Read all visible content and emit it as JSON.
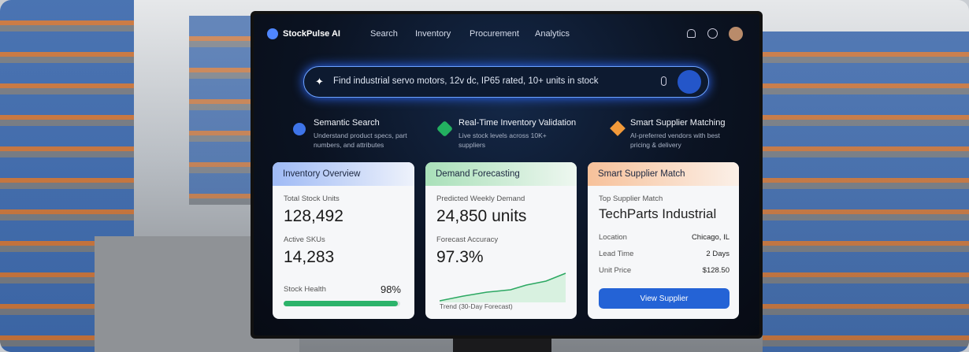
{
  "nav": {
    "brand": "StockPulse AI",
    "links": [
      "Search",
      "Inventory",
      "Procurement",
      "Analytics"
    ]
  },
  "search": {
    "query": "Find industrial servo motors, 12v dc, IP65 rated, 10+ units in stock"
  },
  "features": [
    {
      "title": "Semantic Search",
      "text": "Understand product specs, part numbers, and attributes"
    },
    {
      "title": "Real-Time Inventory Validation",
      "text": "Live stock levels across 10K+ suppliers"
    },
    {
      "title": "Smart Supplier Matching",
      "text": "AI-preferred vendors with best pricing & delivery"
    }
  ],
  "inventory": {
    "title": "Inventory Overview",
    "total_label": "Total Stock Units",
    "total": "128,492",
    "skus_label": "Active SKUs",
    "skus": "14,283",
    "health_label": "Stock Health",
    "health": {
      "value": 98,
      "label": "98%"
    }
  },
  "forecast": {
    "title": "Demand Forecasting",
    "demand_label": "Predicted Weekly Demand",
    "demand": "24,850 units",
    "accuracy_label": "Forecast Accuracy",
    "accuracy": "97.3%",
    "trend_label": "Trend (30-Day Forecast)"
  },
  "supplier": {
    "title": "Smart Supplier Match",
    "top_label": "Top Supplier Match",
    "top": "TechParts Industrial",
    "rows": [
      [
        "Location",
        "Chicago, IL"
      ],
      [
        "Lead Time",
        "2 Days"
      ],
      [
        "Unit Price",
        "$128.50"
      ]
    ],
    "button": "View Supplier"
  }
}
